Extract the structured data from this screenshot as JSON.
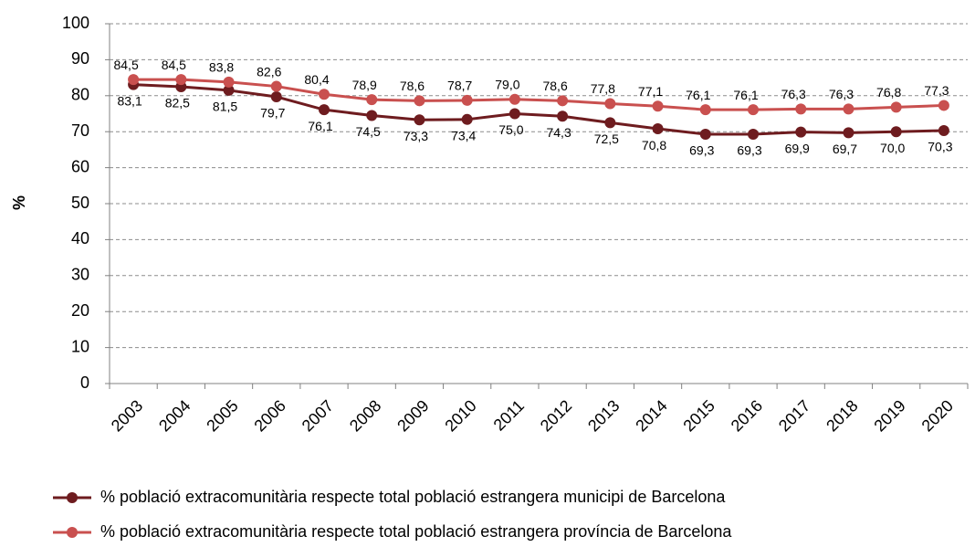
{
  "chart_data": {
    "type": "line",
    "y_label": "%",
    "categories": [
      "2003",
      "2004",
      "2005",
      "2006",
      "2007",
      "2008",
      "2009",
      "2010",
      "2011",
      "2012",
      "2013",
      "2014",
      "2015",
      "2016",
      "2017",
      "2018",
      "2019",
      "2020"
    ],
    "series": [
      {
        "name": "% població extracomunitària respecte total població estrangera municipi de Barcelona",
        "color": "#6e1c1f",
        "values": [
          83.1,
          82.5,
          81.5,
          79.7,
          76.1,
          74.5,
          73.3,
          73.4,
          75.0,
          74.3,
          72.5,
          70.8,
          69.3,
          69.3,
          69.9,
          69.7,
          70.0,
          70.3
        ],
        "value_labels": [
          "83,1",
          "82,5",
          "81,5",
          "79,7",
          "76,1",
          "74,5",
          "73,3",
          "73,4",
          "75,0",
          "74,3",
          "72,5",
          "70,8",
          "69,3",
          "69,3",
          "69,9",
          "69,7",
          "70,0",
          "70,3"
        ]
      },
      {
        "name": "% població extracomunitària respecte total població estrangera província de Barcelona",
        "color": "#c9504f",
        "values": [
          84.5,
          84.5,
          83.8,
          82.6,
          80.4,
          78.9,
          78.6,
          78.7,
          79.0,
          78.6,
          77.8,
          77.1,
          76.1,
          76.1,
          76.3,
          76.3,
          76.8,
          77.3
        ],
        "value_labels": [
          "84,5",
          "84,5",
          "83,8",
          "82,6",
          "80,4",
          "78,9",
          "78,6",
          "78,7",
          "79,0",
          "78,6",
          "77,8",
          "77,1",
          "76,1",
          "76,1",
          "76,3",
          "76,3",
          "76,8",
          "77,3"
        ]
      }
    ],
    "ylim": [
      0,
      100
    ],
    "yticks": [
      0,
      10,
      20,
      30,
      40,
      50,
      60,
      70,
      80,
      90,
      100
    ],
    "grid": true,
    "legend": "bottom"
  }
}
